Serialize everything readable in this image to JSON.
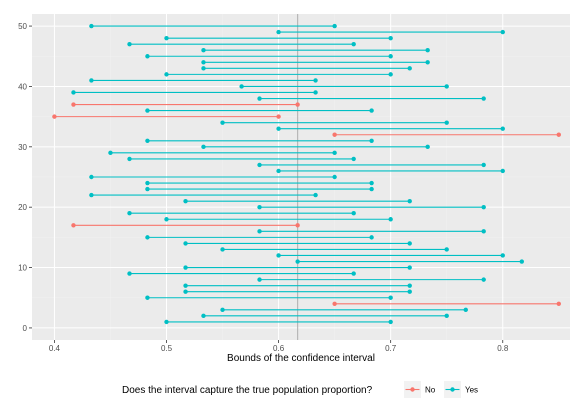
{
  "chart_data": {
    "type": "dumbbell",
    "xlabel": "Bounds of the confidence interval",
    "ylabel": "",
    "xlim": [
      0.38,
      0.86
    ],
    "ylim": [
      -2,
      52
    ],
    "x_ticks": [
      0.4,
      0.5,
      0.6,
      0.7,
      0.8
    ],
    "x_tick_labels": [
      "0.4",
      "0.5",
      "0.6",
      "0.7",
      "0.8"
    ],
    "y_ticks": [
      0,
      10,
      20,
      30,
      40,
      50
    ],
    "y_tick_labels": [
      "0",
      "10",
      "20",
      "30",
      "40",
      "50"
    ],
    "reference_line_x": 0.617,
    "grid": true,
    "legend": {
      "title": "Does the interval capture the true population proportion?",
      "position": "bottom",
      "entries": [
        {
          "label": "No",
          "color": "#F8766D"
        },
        {
          "label": "Yes",
          "color": "#00BFC4"
        }
      ]
    },
    "intervals": [
      {
        "y": 1,
        "lower": 0.5,
        "upper": 0.7,
        "capture": "Yes"
      },
      {
        "y": 2,
        "lower": 0.533,
        "upper": 0.75,
        "capture": "Yes"
      },
      {
        "y": 3,
        "lower": 0.55,
        "upper": 0.767,
        "capture": "Yes"
      },
      {
        "y": 4,
        "lower": 0.65,
        "upper": 0.85,
        "capture": "No"
      },
      {
        "y": 5,
        "lower": 0.483,
        "upper": 0.7,
        "capture": "Yes"
      },
      {
        "y": 6,
        "lower": 0.517,
        "upper": 0.717,
        "capture": "Yes"
      },
      {
        "y": 7,
        "lower": 0.517,
        "upper": 0.717,
        "capture": "Yes"
      },
      {
        "y": 8,
        "lower": 0.583,
        "upper": 0.783,
        "capture": "Yes"
      },
      {
        "y": 9,
        "lower": 0.467,
        "upper": 0.667,
        "capture": "Yes"
      },
      {
        "y": 10,
        "lower": 0.517,
        "upper": 0.717,
        "capture": "Yes"
      },
      {
        "y": 11,
        "lower": 0.617,
        "upper": 0.817,
        "capture": "Yes"
      },
      {
        "y": 12,
        "lower": 0.6,
        "upper": 0.8,
        "capture": "Yes"
      },
      {
        "y": 13,
        "lower": 0.55,
        "upper": 0.75,
        "capture": "Yes"
      },
      {
        "y": 14,
        "lower": 0.517,
        "upper": 0.717,
        "capture": "Yes"
      },
      {
        "y": 15,
        "lower": 0.483,
        "upper": 0.683,
        "capture": "Yes"
      },
      {
        "y": 16,
        "lower": 0.583,
        "upper": 0.783,
        "capture": "Yes"
      },
      {
        "y": 17,
        "lower": 0.417,
        "upper": 0.617,
        "capture": "No"
      },
      {
        "y": 18,
        "lower": 0.5,
        "upper": 0.7,
        "capture": "Yes"
      },
      {
        "y": 19,
        "lower": 0.467,
        "upper": 0.667,
        "capture": "Yes"
      },
      {
        "y": 20,
        "lower": 0.583,
        "upper": 0.783,
        "capture": "Yes"
      },
      {
        "y": 21,
        "lower": 0.517,
        "upper": 0.717,
        "capture": "Yes"
      },
      {
        "y": 22,
        "lower": 0.433,
        "upper": 0.633,
        "capture": "Yes"
      },
      {
        "y": 23,
        "lower": 0.483,
        "upper": 0.683,
        "capture": "Yes"
      },
      {
        "y": 24,
        "lower": 0.483,
        "upper": 0.683,
        "capture": "Yes"
      },
      {
        "y": 25,
        "lower": 0.433,
        "upper": 0.65,
        "capture": "Yes"
      },
      {
        "y": 26,
        "lower": 0.6,
        "upper": 0.8,
        "capture": "Yes"
      },
      {
        "y": 27,
        "lower": 0.583,
        "upper": 0.783,
        "capture": "Yes"
      },
      {
        "y": 28,
        "lower": 0.467,
        "upper": 0.667,
        "capture": "Yes"
      },
      {
        "y": 29,
        "lower": 0.45,
        "upper": 0.65,
        "capture": "Yes"
      },
      {
        "y": 30,
        "lower": 0.533,
        "upper": 0.733,
        "capture": "Yes"
      },
      {
        "y": 31,
        "lower": 0.483,
        "upper": 0.683,
        "capture": "Yes"
      },
      {
        "y": 32,
        "lower": 0.65,
        "upper": 0.85,
        "capture": "No"
      },
      {
        "y": 33,
        "lower": 0.6,
        "upper": 0.8,
        "capture": "Yes"
      },
      {
        "y": 34,
        "lower": 0.55,
        "upper": 0.75,
        "capture": "Yes"
      },
      {
        "y": 35,
        "lower": 0.4,
        "upper": 0.6,
        "capture": "No"
      },
      {
        "y": 36,
        "lower": 0.483,
        "upper": 0.683,
        "capture": "Yes"
      },
      {
        "y": 37,
        "lower": 0.417,
        "upper": 0.617,
        "capture": "No"
      },
      {
        "y": 38,
        "lower": 0.583,
        "upper": 0.783,
        "capture": "Yes"
      },
      {
        "y": 39,
        "lower": 0.417,
        "upper": 0.633,
        "capture": "Yes"
      },
      {
        "y": 40,
        "lower": 0.567,
        "upper": 0.75,
        "capture": "Yes"
      },
      {
        "y": 41,
        "lower": 0.433,
        "upper": 0.633,
        "capture": "Yes"
      },
      {
        "y": 42,
        "lower": 0.5,
        "upper": 0.7,
        "capture": "Yes"
      },
      {
        "y": 43,
        "lower": 0.533,
        "upper": 0.717,
        "capture": "Yes"
      },
      {
        "y": 44,
        "lower": 0.533,
        "upper": 0.733,
        "capture": "Yes"
      },
      {
        "y": 45,
        "lower": 0.483,
        "upper": 0.7,
        "capture": "Yes"
      },
      {
        "y": 46,
        "lower": 0.533,
        "upper": 0.733,
        "capture": "Yes"
      },
      {
        "y": 47,
        "lower": 0.467,
        "upper": 0.667,
        "capture": "Yes"
      },
      {
        "y": 48,
        "lower": 0.5,
        "upper": 0.7,
        "capture": "Yes"
      },
      {
        "y": 49,
        "lower": 0.6,
        "upper": 0.8,
        "capture": "Yes"
      },
      {
        "y": 50,
        "lower": 0.433,
        "upper": 0.65,
        "capture": "Yes"
      }
    ]
  },
  "colors": {
    "panel_background": "#EBEBEB",
    "grid_major": "#FFFFFF",
    "grid_minor": "#F2F2F2",
    "reference_line": "#B3B3B3",
    "no": "#F8766D",
    "yes": "#00BFC4"
  }
}
